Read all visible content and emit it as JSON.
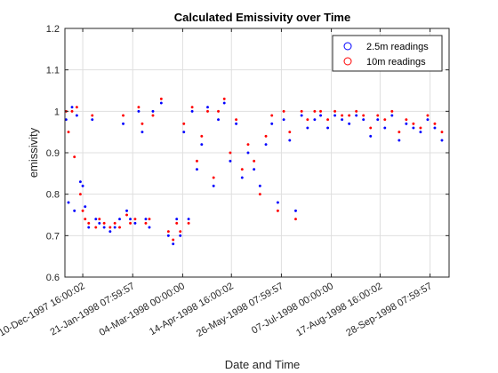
{
  "chart_data": {
    "type": "scatter",
    "title": "Calculated Emissivity over Time",
    "xlabel": "Date and Time",
    "ylabel": "emissivity",
    "ylim": [
      0.6,
      1.2
    ],
    "yticks": [
      "0.6",
      "0.7",
      "0.8",
      "0.9",
      "1",
      "1.1",
      "1.2"
    ],
    "xlim": [
      "1997-11-25",
      "1998-10-14"
    ],
    "xticks": [
      {
        "date": "1997-12-10",
        "label": "10-Dec-1997 16:00:02"
      },
      {
        "date": "1998-01-21",
        "label": "21-Jan-1998 07:59:57"
      },
      {
        "date": "1998-03-04",
        "label": "04-Mar-1998 00:00:00"
      },
      {
        "date": "1998-04-14",
        "label": "14-Apr-1998 16:00:02"
      },
      {
        "date": "1998-05-26",
        "label": "26-May-1998 07:59:57"
      },
      {
        "date": "1998-07-07",
        "label": "07-Jul-1998 00:00:00"
      },
      {
        "date": "1998-08-17",
        "label": "17-Aug-1998 16:00:02"
      },
      {
        "date": "1998-09-28",
        "label": "28-Sep-1998 07:59:57"
      }
    ],
    "grid": true,
    "legend_position": "top-right",
    "series": [
      {
        "name": "2.5m readings",
        "color": "#0000ff",
        "marker": "o",
        "points": [
          [
            "1997-11-26",
            0.98
          ],
          [
            "1997-11-28",
            0.78
          ],
          [
            "1997-12-01",
            1.01
          ],
          [
            "1997-12-03",
            0.76
          ],
          [
            "1997-12-05",
            0.99
          ],
          [
            "1997-12-08",
            0.83
          ],
          [
            "1997-12-10",
            0.82
          ],
          [
            "1997-12-12",
            0.77
          ],
          [
            "1997-12-15",
            0.72
          ],
          [
            "1997-12-18",
            0.98
          ],
          [
            "1997-12-21",
            0.74
          ],
          [
            "1997-12-24",
            0.73
          ],
          [
            "1997-12-28",
            0.72
          ],
          [
            "1998-01-02",
            0.71
          ],
          [
            "1998-01-06",
            0.72
          ],
          [
            "1998-01-10",
            0.74
          ],
          [
            "1998-01-13",
            0.97
          ],
          [
            "1998-01-16",
            0.76
          ],
          [
            "1998-01-19",
            0.74
          ],
          [
            "1998-01-23",
            0.73
          ],
          [
            "1998-01-26",
            1.0
          ],
          [
            "1998-01-29",
            0.95
          ],
          [
            "1998-02-01",
            0.74
          ],
          [
            "1998-02-04",
            0.72
          ],
          [
            "1998-02-07",
            1.0
          ],
          [
            "1998-02-14",
            1.02
          ],
          [
            "1998-02-20",
            0.7
          ],
          [
            "1998-02-24",
            0.68
          ],
          [
            "1998-02-27",
            0.74
          ],
          [
            "1998-03-02",
            0.7
          ],
          [
            "1998-03-05",
            0.95
          ],
          [
            "1998-03-09",
            0.74
          ],
          [
            "1998-03-12",
            1.0
          ],
          [
            "1998-03-16",
            0.86
          ],
          [
            "1998-03-20",
            0.92
          ],
          [
            "1998-03-25",
            1.01
          ],
          [
            "1998-03-30",
            0.82
          ],
          [
            "1998-04-03",
            0.98
          ],
          [
            "1998-04-08",
            1.02
          ],
          [
            "1998-04-13",
            0.88
          ],
          [
            "1998-04-18",
            0.97
          ],
          [
            "1998-04-23",
            0.84
          ],
          [
            "1998-04-28",
            0.9
          ],
          [
            "1998-05-03",
            0.86
          ],
          [
            "1998-05-08",
            0.82
          ],
          [
            "1998-05-13",
            0.92
          ],
          [
            "1998-05-18",
            0.97
          ],
          [
            "1998-05-23",
            0.78
          ],
          [
            "1998-05-28",
            0.98
          ],
          [
            "1998-06-02",
            0.93
          ],
          [
            "1998-06-07",
            0.76
          ],
          [
            "1998-06-12",
            0.99
          ],
          [
            "1998-06-17",
            0.96
          ],
          [
            "1998-06-23",
            0.98
          ],
          [
            "1998-06-28",
            0.99
          ],
          [
            "1998-07-04",
            0.96
          ],
          [
            "1998-07-10",
            0.99
          ],
          [
            "1998-07-16",
            0.98
          ],
          [
            "1998-07-22",
            0.97
          ],
          [
            "1998-07-28",
            0.99
          ],
          [
            "1998-08-03",
            0.98
          ],
          [
            "1998-08-09",
            0.94
          ],
          [
            "1998-08-15",
            0.98
          ],
          [
            "1998-08-21",
            0.96
          ],
          [
            "1998-08-27",
            0.99
          ],
          [
            "1998-09-02",
            0.93
          ],
          [
            "1998-09-08",
            0.97
          ],
          [
            "1998-09-14",
            0.96
          ],
          [
            "1998-09-20",
            0.95
          ],
          [
            "1998-09-26",
            0.98
          ],
          [
            "1998-10-02",
            0.96
          ],
          [
            "1998-10-08",
            0.93
          ]
        ]
      },
      {
        "name": "10m readings",
        "color": "#ff0000",
        "marker": "o",
        "points": [
          [
            "1997-11-26",
            1.0
          ],
          [
            "1997-11-28",
            0.95
          ],
          [
            "1997-12-01",
            1.0
          ],
          [
            "1997-12-03",
            0.89
          ],
          [
            "1997-12-05",
            1.01
          ],
          [
            "1997-12-08",
            0.8
          ],
          [
            "1997-12-10",
            0.76
          ],
          [
            "1997-12-12",
            0.74
          ],
          [
            "1997-12-15",
            0.73
          ],
          [
            "1997-12-18",
            0.99
          ],
          [
            "1997-12-21",
            0.72
          ],
          [
            "1997-12-24",
            0.74
          ],
          [
            "1997-12-28",
            0.73
          ],
          [
            "1998-01-02",
            0.72
          ],
          [
            "1998-01-06",
            0.73
          ],
          [
            "1998-01-10",
            0.72
          ],
          [
            "1998-01-13",
            0.99
          ],
          [
            "1998-01-16",
            0.75
          ],
          [
            "1998-01-19",
            0.73
          ],
          [
            "1998-01-23",
            0.74
          ],
          [
            "1998-01-26",
            1.01
          ],
          [
            "1998-01-29",
            0.97
          ],
          [
            "1998-02-01",
            0.73
          ],
          [
            "1998-02-04",
            0.74
          ],
          [
            "1998-02-07",
            0.99
          ],
          [
            "1998-02-14",
            1.03
          ],
          [
            "1998-02-20",
            0.71
          ],
          [
            "1998-02-24",
            0.69
          ],
          [
            "1998-02-27",
            0.73
          ],
          [
            "1998-03-02",
            0.71
          ],
          [
            "1998-03-05",
            0.97
          ],
          [
            "1998-03-09",
            0.73
          ],
          [
            "1998-03-12",
            1.01
          ],
          [
            "1998-03-16",
            0.88
          ],
          [
            "1998-03-20",
            0.94
          ],
          [
            "1998-03-25",
            1.0
          ],
          [
            "1998-03-30",
            0.84
          ],
          [
            "1998-04-03",
            1.0
          ],
          [
            "1998-04-08",
            1.03
          ],
          [
            "1998-04-13",
            0.9
          ],
          [
            "1998-04-18",
            0.98
          ],
          [
            "1998-04-23",
            0.86
          ],
          [
            "1998-04-28",
            0.92
          ],
          [
            "1998-05-03",
            0.88
          ],
          [
            "1998-05-08",
            0.8
          ],
          [
            "1998-05-13",
            0.94
          ],
          [
            "1998-05-18",
            0.99
          ],
          [
            "1998-05-23",
            0.76
          ],
          [
            "1998-05-28",
            1.0
          ],
          [
            "1998-06-02",
            0.95
          ],
          [
            "1998-06-07",
            0.74
          ],
          [
            "1998-06-12",
            1.0
          ],
          [
            "1998-06-17",
            0.98
          ],
          [
            "1998-06-23",
            1.0
          ],
          [
            "1998-06-28",
            1.0
          ],
          [
            "1998-07-04",
            0.98
          ],
          [
            "1998-07-10",
            1.0
          ],
          [
            "1998-07-16",
            0.99
          ],
          [
            "1998-07-22",
            0.99
          ],
          [
            "1998-07-28",
            1.0
          ],
          [
            "1998-08-03",
            0.99
          ],
          [
            "1998-08-09",
            0.96
          ],
          [
            "1998-08-15",
            0.99
          ],
          [
            "1998-08-21",
            0.98
          ],
          [
            "1998-08-27",
            1.0
          ],
          [
            "1998-09-02",
            0.95
          ],
          [
            "1998-09-08",
            0.98
          ],
          [
            "1998-09-14",
            0.97
          ],
          [
            "1998-09-20",
            0.96
          ],
          [
            "1998-09-26",
            0.99
          ],
          [
            "1998-10-02",
            0.97
          ],
          [
            "1998-10-08",
            0.95
          ]
        ]
      }
    ]
  }
}
